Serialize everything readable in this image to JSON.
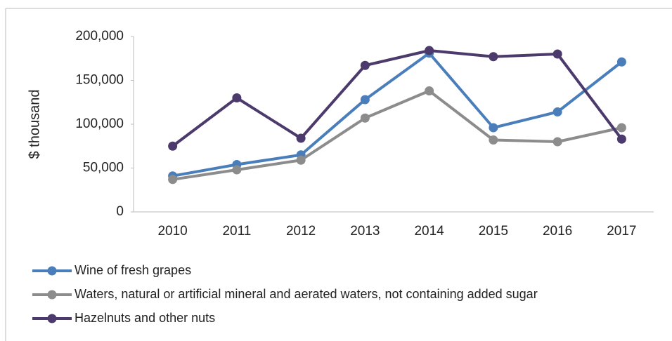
{
  "chart_data": {
    "type": "line",
    "ylabel": "$ thousand",
    "categories": [
      "2010",
      "2011",
      "2012",
      "2013",
      "2014",
      "2015",
      "2016",
      "2017"
    ],
    "series": [
      {
        "name": "Wine of fresh grapes",
        "color": "#4a7ebb",
        "values": [
          41000,
          54000,
          65000,
          128000,
          181000,
          96000,
          114000,
          171000
        ]
      },
      {
        "name": "Waters, natural or artificial mineral and aerated waters, not containing added sugar",
        "color": "#8c8c8c",
        "values": [
          37000,
          48000,
          59000,
          107000,
          138000,
          82000,
          80000,
          96000
        ]
      },
      {
        "name": "Hazelnuts and other nuts",
        "color": "#4b3a6b",
        "values": [
          75000,
          130000,
          84000,
          167000,
          184000,
          177000,
          180000,
          83000
        ]
      }
    ],
    "ylim": [
      0,
      200000
    ],
    "yticks": [
      0,
      {
        "value": 50000,
        "label": "50,000"
      },
      {
        "value": 100000,
        "label": "100,000"
      },
      {
        "value": 150000,
        "label": "150,000"
      },
      {
        "value": 200000,
        "label": "200,000"
      }
    ],
    "grid": false,
    "legend": "bottom"
  }
}
